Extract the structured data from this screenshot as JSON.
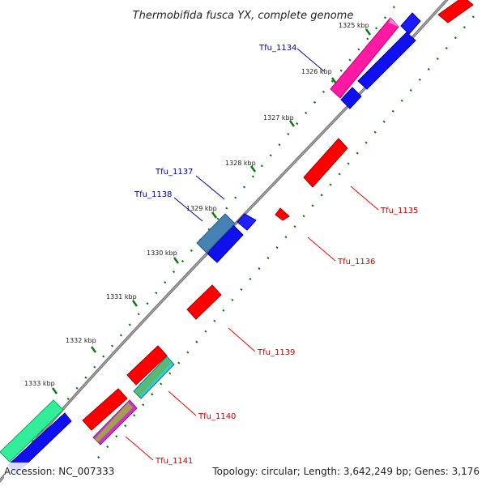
{
  "title": "Thermobifida fusca YX, complete genome",
  "footer": {
    "accession": "Accession: NC_007333",
    "summary": "Topology: circular; Length: 3,642,249 bp; Genes: 3,176"
  },
  "colors": {
    "forward_gene": "#ff0000",
    "reverse_gene": "#0000ee",
    "backbone": "#888888",
    "tick": "#117711",
    "label_forward": "#cc0000",
    "label_reverse": "#0000aa"
  },
  "ticks": [
    "1325 kbp",
    "1326 kbp",
    "1327 kbp",
    "1328 kbp",
    "1329 kbp",
    "1330 kbp",
    "1331 kbp",
    "1332 kbp",
    "1333 kbp"
  ],
  "gene_labels": {
    "tfu_1134": "Tfu_1134",
    "tfu_1135": "Tfu_1135",
    "tfu_1136": "Tfu_1136",
    "tfu_1137": "Tfu_1137",
    "tfu_1138": "Tfu_1138",
    "tfu_1139": "Tfu_1139",
    "tfu_1140": "Tfu_1140",
    "tfu_1141": "Tfu_1141"
  }
}
